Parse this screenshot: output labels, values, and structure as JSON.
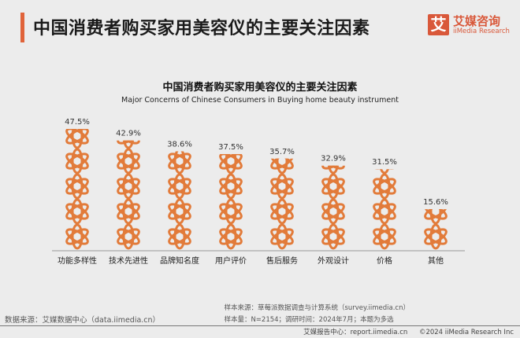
{
  "header": {
    "title": "中国消费者购买家用美容仪的主要关注因素",
    "logo": {
      "mark": "艾",
      "cn": "艾媒咨询",
      "en": "iiMedia Research"
    }
  },
  "colors": {
    "accent": "#e0633a",
    "icon": "#e27b3a",
    "axis": "#999999"
  },
  "chart_data": {
    "type": "bar",
    "style": "pictogram (stacked atom icons, 10% per icon)",
    "icon": "atom-icon",
    "title": "中国消费者购买家用美容仪的主要关注因素",
    "subtitle": "Major Concerns of Chinese Consumers in Buying home beauty instrument",
    "categories": [
      "功能多样性",
      "技术先进性",
      "品牌知名度",
      "用户评价",
      "售后服务",
      "外观设计",
      "价格",
      "其他"
    ],
    "values": [
      47.5,
      42.9,
      38.6,
      37.5,
      35.7,
      32.9,
      31.5,
      15.6
    ],
    "labels": [
      "47.5%",
      "42.9%",
      "38.6%",
      "37.5%",
      "35.7%",
      "32.9%",
      "31.5%",
      "15.6%"
    ],
    "unit": "%",
    "grid": false,
    "legend": "none"
  },
  "source": {
    "left": "数据来源：艾媒数据中心（data.iimedia.cn）",
    "sample_source": "样本来源：草莓派数据调查与计算系统（survey.iimedia.cn）",
    "sample_info": "样本量：N=2154；调研时间：2024年7月；本题为多选"
  },
  "footer": {
    "report_center": "艾媒报告中心：report.iimedia.cn",
    "copyright": "©2024 iiMedia Research Inc"
  }
}
